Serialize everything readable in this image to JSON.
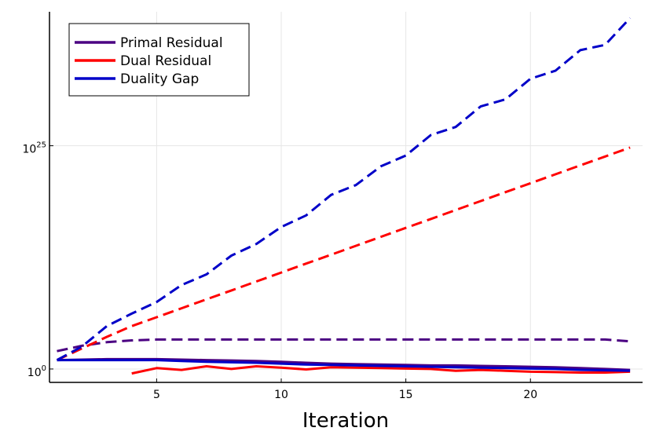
{
  "chart_data": {
    "type": "line",
    "title": "",
    "xlabel": "Iteration",
    "ylabel": "",
    "yscale": "log10",
    "xlim": [
      0.7,
      24.5
    ],
    "ylim": [
      -1.5,
      40.0
    ],
    "x_ticks": [
      5,
      10,
      15,
      20
    ],
    "y_ticks": [
      {
        "exp": 0,
        "base": "10",
        "sup": "0"
      },
      {
        "exp": 25,
        "base": "10",
        "sup": "25"
      }
    ],
    "grid": true,
    "legend_position": "top-left",
    "legend": [
      {
        "label": "Primal Residual",
        "color": "#4b0082"
      },
      {
        "label": "Dual Residual",
        "color": "#ff0000"
      },
      {
        "label": "Duality Gap",
        "color": "#0000c8"
      }
    ],
    "series": [
      {
        "name": "Primal Residual",
        "style": "solid",
        "color": "#4b0082",
        "x": [
          1,
          2,
          3,
          4,
          5,
          6,
          7,
          8,
          9,
          10,
          11,
          12,
          13,
          14,
          15,
          16,
          17,
          18,
          19,
          20,
          21,
          22,
          23,
          24
        ],
        "y_exp": [
          1.0,
          1.05,
          1.1,
          1.1,
          1.1,
          1.05,
          1.0,
          0.95,
          0.9,
          0.8,
          0.7,
          0.6,
          0.55,
          0.5,
          0.45,
          0.4,
          0.4,
          0.35,
          0.3,
          0.25,
          0.2,
          0.1,
          0.0,
          -0.1
        ]
      },
      {
        "name": "Primal Residual (dashed)",
        "style": "dashed",
        "color": "#4b0082",
        "x": [
          1,
          2,
          3,
          4,
          5,
          6,
          7,
          8,
          9,
          10,
          11,
          12,
          13,
          14,
          15,
          16,
          17,
          18,
          19,
          20,
          21,
          22,
          23,
          24
        ],
        "y_exp": [
          2.0,
          2.6,
          3.0,
          3.2,
          3.3,
          3.3,
          3.3,
          3.3,
          3.3,
          3.3,
          3.3,
          3.3,
          3.3,
          3.3,
          3.3,
          3.3,
          3.3,
          3.3,
          3.3,
          3.3,
          3.3,
          3.3,
          3.3,
          3.1
        ]
      },
      {
        "name": "Dual Residual",
        "style": "solid",
        "color": "#ff0000",
        "x": [
          4,
          5,
          6,
          7,
          8,
          9,
          10,
          11,
          12,
          13,
          14,
          15,
          16,
          17,
          18,
          19,
          20,
          21,
          22,
          23,
          24
        ],
        "y_exp": [
          -0.5,
          0.1,
          -0.1,
          0.3,
          0.0,
          0.3,
          0.15,
          -0.05,
          0.2,
          0.15,
          0.1,
          0.05,
          0.0,
          -0.2,
          -0.1,
          -0.2,
          -0.3,
          -0.35,
          -0.4,
          -0.4,
          -0.3
        ]
      },
      {
        "name": "Dual Residual (dashed)",
        "style": "dashed",
        "color": "#ff0000",
        "x": [
          1,
          2,
          3,
          4,
          5,
          6,
          7,
          8,
          9,
          10,
          11,
          12,
          13,
          14,
          15,
          16,
          17,
          18,
          19,
          20,
          21,
          22,
          23,
          24
        ],
        "y_exp": [
          1.0,
          2.3,
          3.6,
          4.8,
          5.8,
          6.8,
          7.8,
          8.8,
          9.8,
          10.8,
          11.8,
          12.8,
          13.8,
          14.8,
          15.8,
          16.8,
          17.8,
          18.8,
          19.8,
          20.8,
          21.8,
          22.8,
          23.8,
          24.8
        ]
      },
      {
        "name": "Duality Gap",
        "style": "solid",
        "color": "#0000c8",
        "x": [
          1,
          2,
          3,
          4,
          5,
          6,
          7,
          8,
          9,
          10,
          11,
          12,
          13,
          14,
          15,
          16,
          17,
          18,
          19,
          20,
          21,
          22,
          23,
          24
        ],
        "y_exp": [
          1.0,
          1.0,
          1.0,
          1.0,
          1.0,
          0.9,
          0.8,
          0.75,
          0.7,
          0.6,
          0.5,
          0.45,
          0.4,
          0.35,
          0.3,
          0.25,
          0.2,
          0.15,
          0.1,
          0.05,
          0.0,
          -0.1,
          -0.15,
          -0.2
        ]
      },
      {
        "name": "Duality Gap (dashed)",
        "style": "dashed",
        "color": "#0000c8",
        "x": [
          1,
          2,
          3,
          4,
          5,
          6,
          7,
          8,
          9,
          10,
          11,
          12,
          13,
          14,
          15,
          16,
          17,
          18,
          19,
          20,
          21,
          22,
          23,
          24
        ],
        "y_exp": [
          1.0,
          2.5,
          4.8,
          6.2,
          7.5,
          9.4,
          10.6,
          12.7,
          14.0,
          15.9,
          17.2,
          19.5,
          20.6,
          22.7,
          23.9,
          26.2,
          27.1,
          29.4,
          30.2,
          32.5,
          33.4,
          35.7,
          36.3,
          39.3
        ]
      }
    ]
  }
}
